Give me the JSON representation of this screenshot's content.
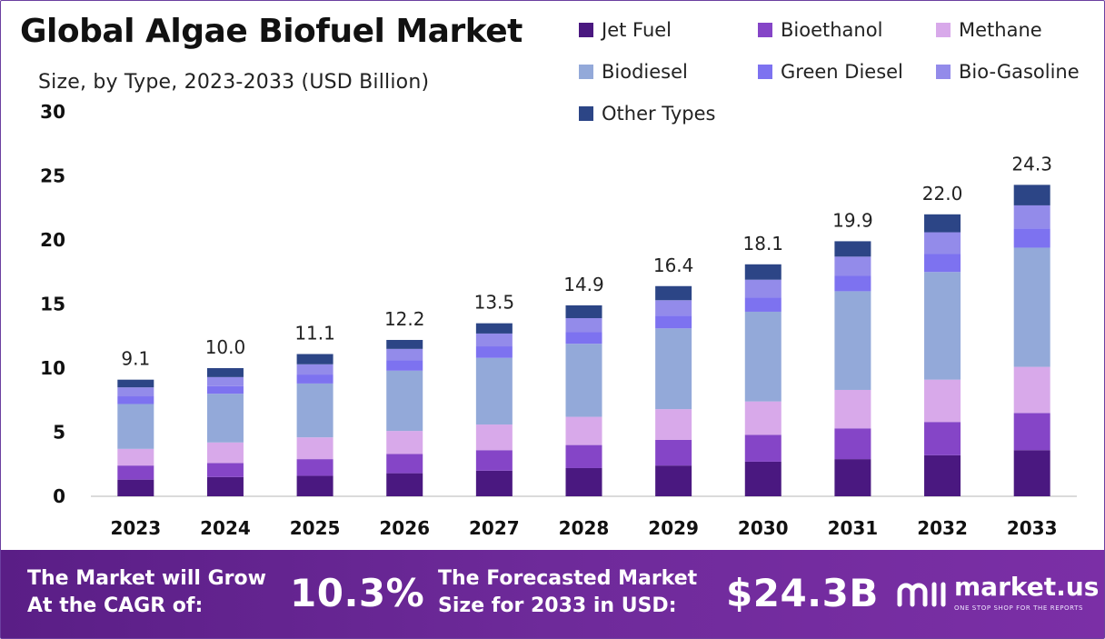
{
  "title": "Global Algae Biofuel Market",
  "subtitle": "Size, by Type, 2023-2033 (USD Billion)",
  "chart_data": {
    "type": "bar",
    "stacked": true,
    "title": "Global Algae Biofuel Market",
    "subtitle": "Size, by Type, 2023-2033 (USD Billion)",
    "xlabel": "",
    "ylabel": "",
    "ylim": [
      0,
      30
    ],
    "yticks": [
      "0",
      "5",
      "10",
      "15",
      "20",
      "25",
      "30"
    ],
    "grid": false,
    "legend_position": "top-right",
    "categories": [
      "2023",
      "2024",
      "2025",
      "2026",
      "2027",
      "2028",
      "2029",
      "2030",
      "2031",
      "2032",
      "2033"
    ],
    "totals": [
      "9.1",
      "10.0",
      "11.1",
      "12.2",
      "13.5",
      "14.9",
      "16.4",
      "18.1",
      "19.9",
      "22.0",
      "24.3"
    ],
    "series": [
      {
        "name": "Jet Fuel",
        "color": "#4a1880",
        "values": [
          1.3,
          1.5,
          1.6,
          1.8,
          2.0,
          2.2,
          2.4,
          2.7,
          2.9,
          3.2,
          3.6
        ]
      },
      {
        "name": "Bioethanol",
        "color": "#8545c7",
        "values": [
          1.1,
          1.1,
          1.3,
          1.5,
          1.6,
          1.8,
          2.0,
          2.1,
          2.4,
          2.6,
          2.9
        ]
      },
      {
        "name": "Methane",
        "color": "#d8a9ea",
        "values": [
          1.3,
          1.6,
          1.7,
          1.8,
          2.0,
          2.2,
          2.4,
          2.6,
          3.0,
          3.3,
          3.6
        ]
      },
      {
        "name": "Biodiesel",
        "color": "#93a9d9",
        "values": [
          3.5,
          3.8,
          4.2,
          4.7,
          5.2,
          5.7,
          6.3,
          7.0,
          7.7,
          8.4,
          9.3
        ]
      },
      {
        "name": "Green Diesel",
        "color": "#7d72f0",
        "values": [
          0.6,
          0.6,
          0.7,
          0.8,
          0.9,
          0.9,
          1.0,
          1.1,
          1.2,
          1.4,
          1.5
        ]
      },
      {
        "name": "Bio-Gasoline",
        "color": "#938bea",
        "values": [
          0.7,
          0.7,
          0.8,
          0.9,
          1.0,
          1.1,
          1.2,
          1.4,
          1.5,
          1.7,
          1.8
        ]
      },
      {
        "name": "Other Types",
        "color": "#2c4586",
        "values": [
          0.6,
          0.7,
          0.8,
          0.7,
          0.8,
          1.0,
          1.1,
          1.2,
          1.2,
          1.4,
          1.6
        ]
      }
    ]
  },
  "footer": {
    "cagr_text_line1": "The Market will Grow",
    "cagr_text_line2": "At the CAGR of:",
    "cagr_value": "10.3%",
    "forecast_text_line1": "The Forecasted Market",
    "forecast_text_line2": "Size for 2033 in USD:",
    "forecast_value": "$24.3B",
    "brand_name": "market.us",
    "brand_tagline": "ONE STOP SHOP FOR THE REPORTS",
    "brand_icon": "market-us-logo-icon"
  }
}
